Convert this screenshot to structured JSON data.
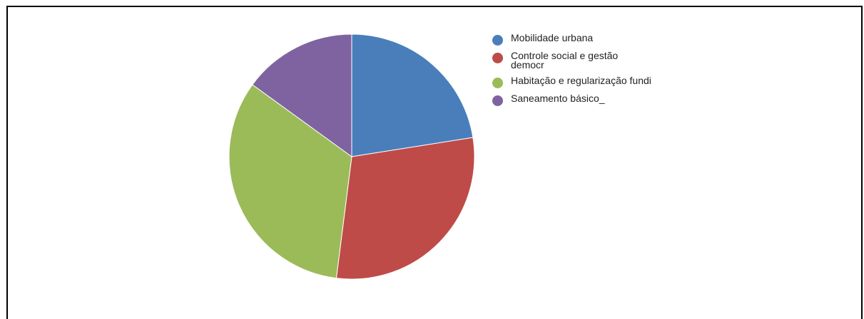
{
  "chart_data": {
    "type": "pie",
    "title": "",
    "start_angle_deg": 0,
    "direction": "clockwise",
    "slices": [
      {
        "label": "Mobilidade urbana",
        "value": 22.5,
        "color": "#4a7ebb"
      },
      {
        "label": "Controle social e gestão democr",
        "value": 29.5,
        "color": "#be4b48"
      },
      {
        "label": "Habitação e regularização fundi",
        "value": 33.0,
        "color": "#9bbb59"
      },
      {
        "label": "Saneamento básico_",
        "value": 15.0,
        "color": "#7f63a1"
      }
    ],
    "legend_position": "right"
  }
}
